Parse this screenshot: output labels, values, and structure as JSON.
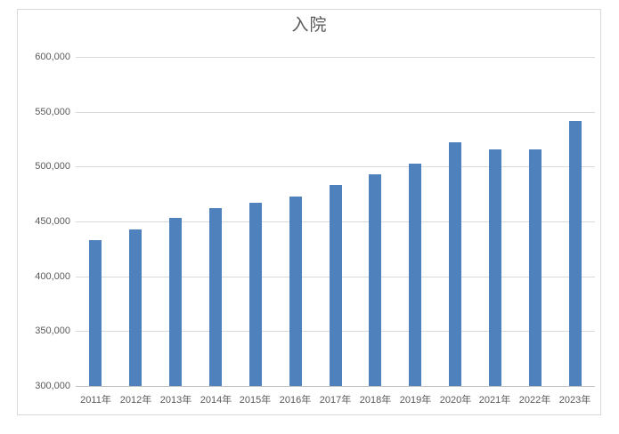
{
  "title": "入院",
  "colors": {
    "bar": "#4f81bd",
    "gridline": "#d9d9d9",
    "axis_line": "#bfbfbf",
    "label_text": "#595959",
    "frame_border": "#d9d9d9",
    "background": "#ffffff"
  },
  "chart_data": {
    "type": "bar",
    "title": "入院",
    "categories": [
      "2011年",
      "2012年",
      "2013年",
      "2014年",
      "2015年",
      "2016年",
      "2017年",
      "2018年",
      "2019年",
      "2020年",
      "2021年",
      "2022年",
      "2023年"
    ],
    "values": [
      433000,
      443000,
      453000,
      462000,
      467000,
      473000,
      483000,
      493000,
      503000,
      522000,
      516000,
      516000,
      542000
    ],
    "xlabel": "",
    "ylabel": "",
    "ylim": [
      300000,
      600000
    ],
    "ytick_step": 50000,
    "ytick_labels_top_to_bottom": [
      "600,000",
      "550,000",
      "500,000",
      "450,000",
      "400,000",
      "350,000",
      "300,000"
    ],
    "grid": true,
    "legend": false,
    "series_name": "入院"
  }
}
